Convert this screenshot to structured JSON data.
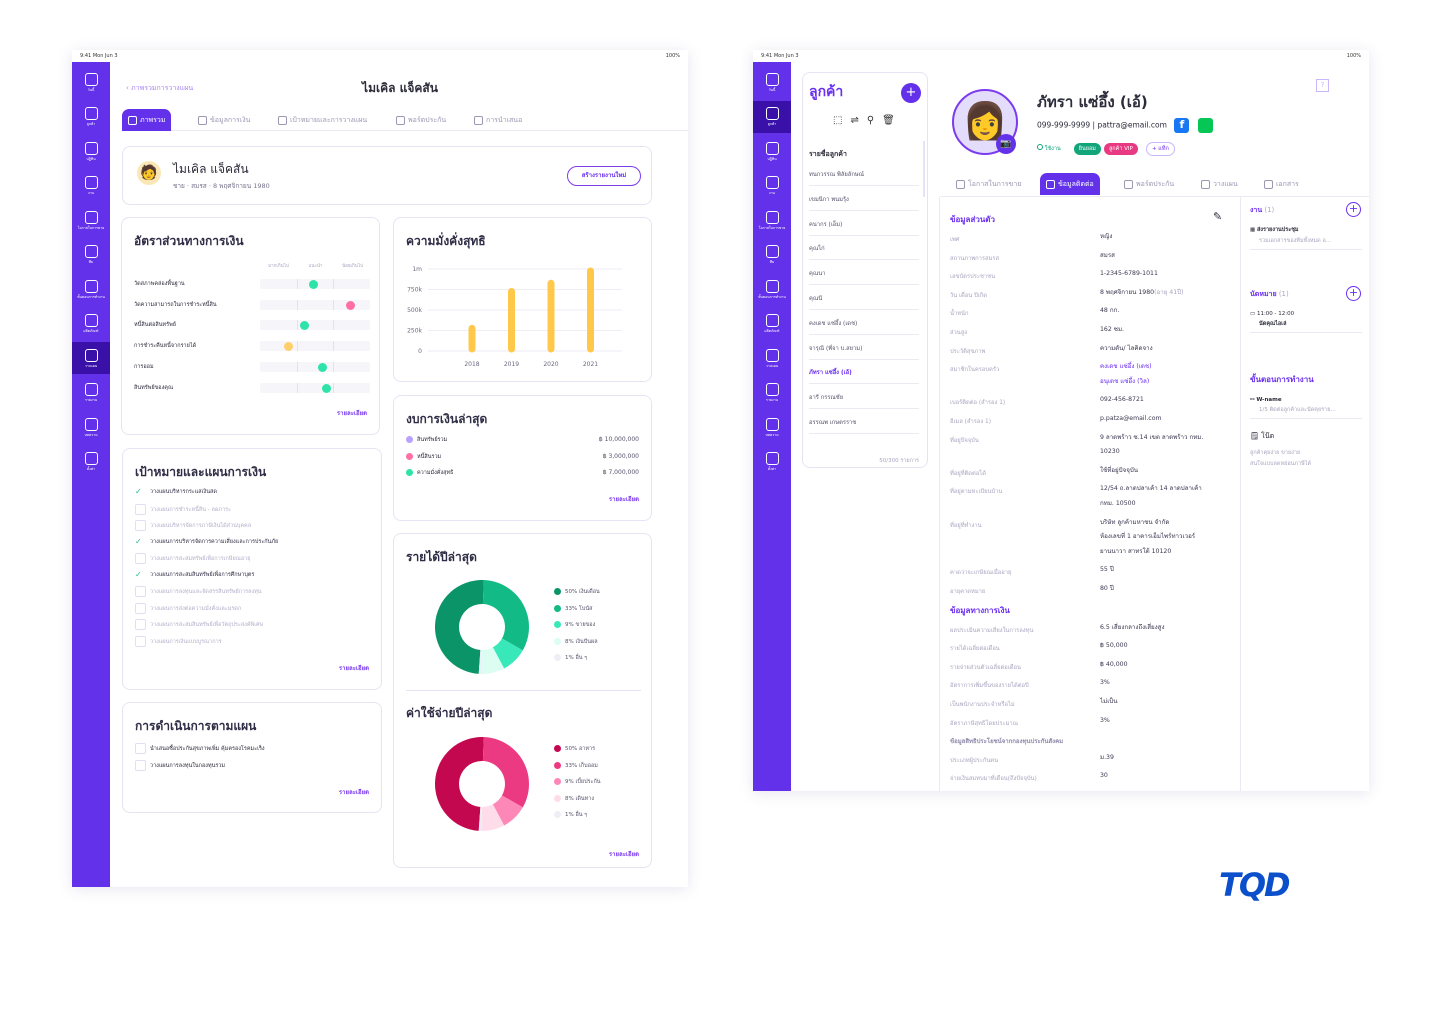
{
  "status": {
    "time": "9:41",
    "date": "Mon Jun 3",
    "battery": "100%"
  },
  "sidebar": [
    {
      "label": "วันนี้",
      "icon": "home-icon"
    },
    {
      "label": "ลูกค้า",
      "icon": "contacts-book-icon"
    },
    {
      "label": "ปฏิทิน",
      "icon": "calendar-icon"
    },
    {
      "label": "งาน",
      "icon": "task-list-icon"
    },
    {
      "label": "โอกาสในการขาย",
      "icon": "target-icon"
    },
    {
      "label": "ทีม",
      "icon": "team-icon"
    },
    {
      "label": "ขั้นตอนการทำงาน",
      "icon": "workflow-icon"
    },
    {
      "label": "ผลิตภัณฑ์",
      "icon": "product-box-icon"
    },
    {
      "label": "วางแผน",
      "icon": "planning-icon"
    },
    {
      "label": "รายงาน",
      "icon": "pie-report-icon"
    },
    {
      "label": "บทความ",
      "icon": "article-icon"
    },
    {
      "label": "ตั้งค่า",
      "icon": "gear-icon"
    }
  ],
  "left": {
    "back": "ภาพรวมการวางแผน",
    "title": "ไมเคิล แจ็คสัน",
    "tabs": [
      "ภาพรวม",
      "ข้อมูลการเงิน",
      "เป้าหมายและการวางแผน",
      "พอร์ตประกัน",
      "การนำเสนอ"
    ],
    "profile": {
      "name": "ไมเคิล แจ็คสัน",
      "meta": "ชาย · สมรส · 8 พฤศจิกายน 1980",
      "button": "สร้างรายงานใหม่"
    },
    "ratios": {
      "title": "อัตราส่วนทางการเงิน",
      "columns": [
        "มากเกินไป",
        "แนะนำ",
        "น้อยเกินไป"
      ],
      "items": [
        {
          "label": "วัดสภาพคล่องพื้นฐาน",
          "position": 0.48,
          "color": "#2ee3a8"
        },
        {
          "label": "วัดความสามารถในการชำระหนี้สิน",
          "position": 0.82,
          "color": "#ff6fa5"
        },
        {
          "label": "หนี้สินต่อสินทรัพย์",
          "position": 0.4,
          "color": "#2ee3a8"
        },
        {
          "label": "การชำระคืนหนี้จากรายได้",
          "position": 0.25,
          "color": "#ffcf6b"
        },
        {
          "label": "การออม",
          "position": 0.56,
          "color": "#2ee3a8"
        },
        {
          "label": "สินทรัพย์ของคุณ",
          "position": 0.6,
          "color": "#2ee3a8"
        }
      ],
      "more": "รายละเอียด"
    },
    "goals": {
      "title": "เป้าหมายและแผนการเงิน",
      "items": [
        {
          "label": "วางแผนบริหารกระแสเงินสด",
          "done": true
        },
        {
          "label": "วางแผนการชำระหนี้สิน - ลดภาระ",
          "done": false
        },
        {
          "label": "วางแผนบริหารจัดการภาษีเงินได้ส่วนบุคคล",
          "done": false
        },
        {
          "label": "วางแผนการบริหารจัดการความเสี่ยงและการประกันภัย",
          "done": true
        },
        {
          "label": "วางแผนการสะสมทรัพย์เพื่อการเกษียณอายุ",
          "done": false
        },
        {
          "label": "วางแผนการสะสมสินทรัพย์เพื่อการศึกษาบุตร",
          "done": true
        },
        {
          "label": "วางแผนการลงทุนและจัดสรรสินทรัพย์การลงทุน",
          "done": false
        },
        {
          "label": "วางแผนการส่งต่อความมั่งคั่งและมรดก",
          "done": false
        },
        {
          "label": "วางแผนการสะสมสินทรัพย์เพื่อวัตถุประสงค์พิเศษ",
          "done": false
        },
        {
          "label": "วางแผนการเงินแบบบูรณาการ",
          "done": false
        }
      ],
      "more": "รายละเอียด"
    },
    "actions": {
      "title": "การดำเนินการตามแผน",
      "items": [
        "นำเสนอซื้อประกันสุขภาพเพิ่ม คุ้มครองโรคมะเร็ง",
        "วางแผนการลงทุนในกองทุนรวม"
      ],
      "more": "รายละเอียด"
    },
    "statement": {
      "title": "งบการเงินล่าสุด",
      "items": [
        {
          "label": "สินทรัพย์รวม",
          "value": "฿ 10,000,000",
          "color": "#b9a2ff"
        },
        {
          "label": "หนี้สินรวม",
          "value": "฿ 3,000,000",
          "color": "#ff6fa5"
        },
        {
          "label": "ความมั่งคั่งสุทธิ",
          "value": "฿ 7,000,000",
          "color": "#2ee3a8"
        }
      ],
      "more": "รายละเอียด"
    },
    "incomeMore": "รายละเอียด"
  },
  "chart_data": [
    {
      "type": "bar",
      "title": "ความมั่งคั่งสุทธิ",
      "categories": [
        "2018",
        "2019",
        "2020",
        "2021"
      ],
      "values": [
        300000,
        750000,
        850000,
        1000000
      ],
      "yticks": [
        "0",
        "250k",
        "500k",
        "750k",
        "1m"
      ],
      "ylim": [
        0,
        1000000
      ],
      "color": "#ffc84a",
      "grid": true
    },
    {
      "type": "pie",
      "title": "รายได้ปีล่าสุด",
      "labels": [
        "50% เงินเดือน",
        "33% โบนัส",
        "9% ขายของ",
        "8% เงินปันผล",
        "1% อื่น ๆ"
      ],
      "values": [
        50,
        33,
        9,
        8,
        1
      ],
      "colors": [
        "#0a9467",
        "#12bb86",
        "#38e8b8",
        "#dcfdf1",
        "#eeeff5"
      ]
    },
    {
      "type": "pie",
      "title": "ค่าใช้จ่ายปีล่าสุด",
      "labels": [
        "50% อาหาร",
        "33% เก็บออม",
        "9% เบี้ยประกัน",
        "8% เดินทาง",
        "1% อื่น ๆ"
      ],
      "values": [
        50,
        33,
        9,
        8,
        1
      ],
      "colors": [
        "#c4084f",
        "#ec3a82",
        "#fd88b8",
        "#ffdce9",
        "#eeeff5"
      ]
    }
  ],
  "right": {
    "list": {
      "title": "ลูกค้า",
      "section": "รายชื่อลูกค้า",
      "items": [
        "ทนกวรรณ พิลัยลักษณ์",
        "เขมนิกา พนมรุ้ง",
        "คนากร (เอ็ม)",
        "คุณไก่",
        "คุณนา",
        "คุณนี",
        "คงเดช แซ่อึ้ง (เดช)",
        "จารุณี (พี่จา บ.สยาม)",
        "ภัทรา แซ่อึ้ง (เอ้)",
        "อารี กรรณชัย",
        "อรรณพ เกษตรราช"
      ],
      "selected": 8,
      "count": "50/300 รายการ"
    },
    "profile": {
      "name": "ภัทรา แซ่อึ้ง (เอ้)",
      "phone": "099-999-9999",
      "email": "| pattra@email.com",
      "status": "ใช้งาน",
      "tags": [
        {
          "label": "ยินยอม",
          "bg": "#12a57a"
        },
        {
          "label": "ลูกค้า VIP",
          "bg": "#e83a82"
        }
      ],
      "addTag": "+ แท็ก"
    },
    "tabs": [
      "โอกาสในการขาย",
      "ข้อมูลติดต่อ",
      "พอร์ตประกัน",
      "วางแผน",
      "เอกสาร"
    ],
    "personalTitle": "ข้อมูลส่วนตัว",
    "personal": [
      [
        "เพศ",
        "หญิง"
      ],
      [
        "สถานภาพการสมรส",
        "สมรส"
      ],
      [
        "เลขบัตรประชาชน",
        "1-2345-6789-1011"
      ],
      [
        "วัน เดือน ปีเกิด",
        "8 พฤศจิกายน 1980"
      ],
      [
        "น้ำหนัก",
        "48 กก."
      ],
      [
        "ส่วนสูง",
        "162 ซม."
      ],
      [
        "ประวัติสุขภาพ",
        "ความดัน/ ไลคิดจาง"
      ],
      [
        "สมาชิกในครอบครัว",
        "คงเดช แซ่อึ้ง (เดช)\nอนุเดช แซ่อึ้ง (วิล)"
      ],
      [
        "เบอร์ติดต่อ (สำรอง 1)",
        "092-456-8721"
      ],
      [
        "อีเมล (สำรอง 1)",
        "p.patza@email.com"
      ],
      [
        "ที่อยู่ปัจจุบัน",
        "9 ลาดพร้าว ซ.14 เขต ลาดพร้าว กทม.\n10230"
      ],
      [
        "ที่อยู่ที่ติดต่อได้",
        "ใช้ที่อยู่ปัจจุบัน"
      ],
      [
        "ที่อยู่ตามทะเบียนบ้าน",
        "12/54 ถ.ลาดปลาเค้า 14 ลาดปลาเค้า\nกทม. 10500"
      ],
      [
        "ที่อยู่ที่ทำงาน",
        "บริษัท ลูกค้ามหาชน จำกัด\nห้องเลขที่ 1 อาคารเอ็มไพร์ทาวเวอร์\nยานนาวา สาทรใต้ 10120"
      ],
      [
        "คาดว่าจะเกษียณเมื่ออายุ",
        "55 ปี"
      ],
      [
        "อายุคาดหมาย",
        "80 ปี"
      ]
    ],
    "age": "(อายุ 41ปี)",
    "financeTitle": "ข้อมูลทางการเงิน",
    "finance": [
      [
        "ผลประเมินความเสี่ยงในการลงทุน",
        "6.5 เสี่ยงกลางถึงเสี่ยงสูง"
      ],
      [
        "รายได้เฉลี่ยต่อเดือน",
        "฿ 50,000"
      ],
      [
        "รายจ่ายส่วนตัวเฉลี่ยต่อเดือน",
        "฿ 40,000"
      ],
      [
        "อัตราการเพิ่มขึ้นของรายได้ต่อปี",
        "3%"
      ],
      [
        "เป็นพนักงานประจำหรือไม่",
        "ไม่เป็น"
      ],
      [
        "อัตราภาษีสุทธิโดยประมาณ",
        "3%"
      ]
    ],
    "ssoTitle": "ข้อมูลสิทธิประโยชน์จากกองทุนประกันสังคม",
    "sso": [
      [
        "ประเภทผู้ประกันตน",
        "ม.39"
      ],
      [
        "จ่ายเงินสมทบมาที่เดือน(ถึงปัจจุบัน)",
        "30"
      ]
    ],
    "tasks": {
      "title": "งาน",
      "count": "(1)",
      "item": "ส่งรายงานประชุม",
      "sub": "รวมเอกสารของทีมทั้งหมด อ..."
    },
    "appts": {
      "title": "นัดหมาย",
      "count": "(1)",
      "time": "11:00 - 12:00",
      "item": "นัดคุณไอเล่"
    },
    "workflow": {
      "title": "ขั้นตอนการทำงาน",
      "item": "W-name",
      "sub": "1/5 ติดต่อลูกค้าและนัดคุยราย..."
    },
    "note": {
      "title": "โน๊ต",
      "text": "ลูกค้าคุยง่าย ขายง่าย\nสนใจแบบลดหย่อนภาษีได้"
    }
  },
  "brand": "TQD",
  "colors": {
    "accent": "#6331ea",
    "sidebarActive": "#3a11a8",
    "link": "#6a2ff0"
  }
}
